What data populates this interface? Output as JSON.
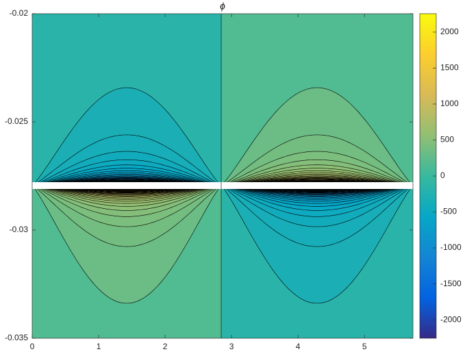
{
  "chart_data": {
    "type": "contour",
    "title": "ϕ",
    "xlim": [
      0,
      5.73
    ],
    "xticks": [
      0,
      1,
      2,
      3,
      4,
      5
    ],
    "ylim": [
      -0.035,
      -0.02
    ],
    "yticks": [
      -0.035,
      -0.03,
      -0.025,
      -0.02
    ],
    "colorbar": {
      "clim": [
        -2256,
        2256
      ],
      "ticks": [
        -2000,
        -1500,
        -1000,
        -500,
        0,
        500,
        1000,
        1500,
        2000
      ]
    }
  }
}
